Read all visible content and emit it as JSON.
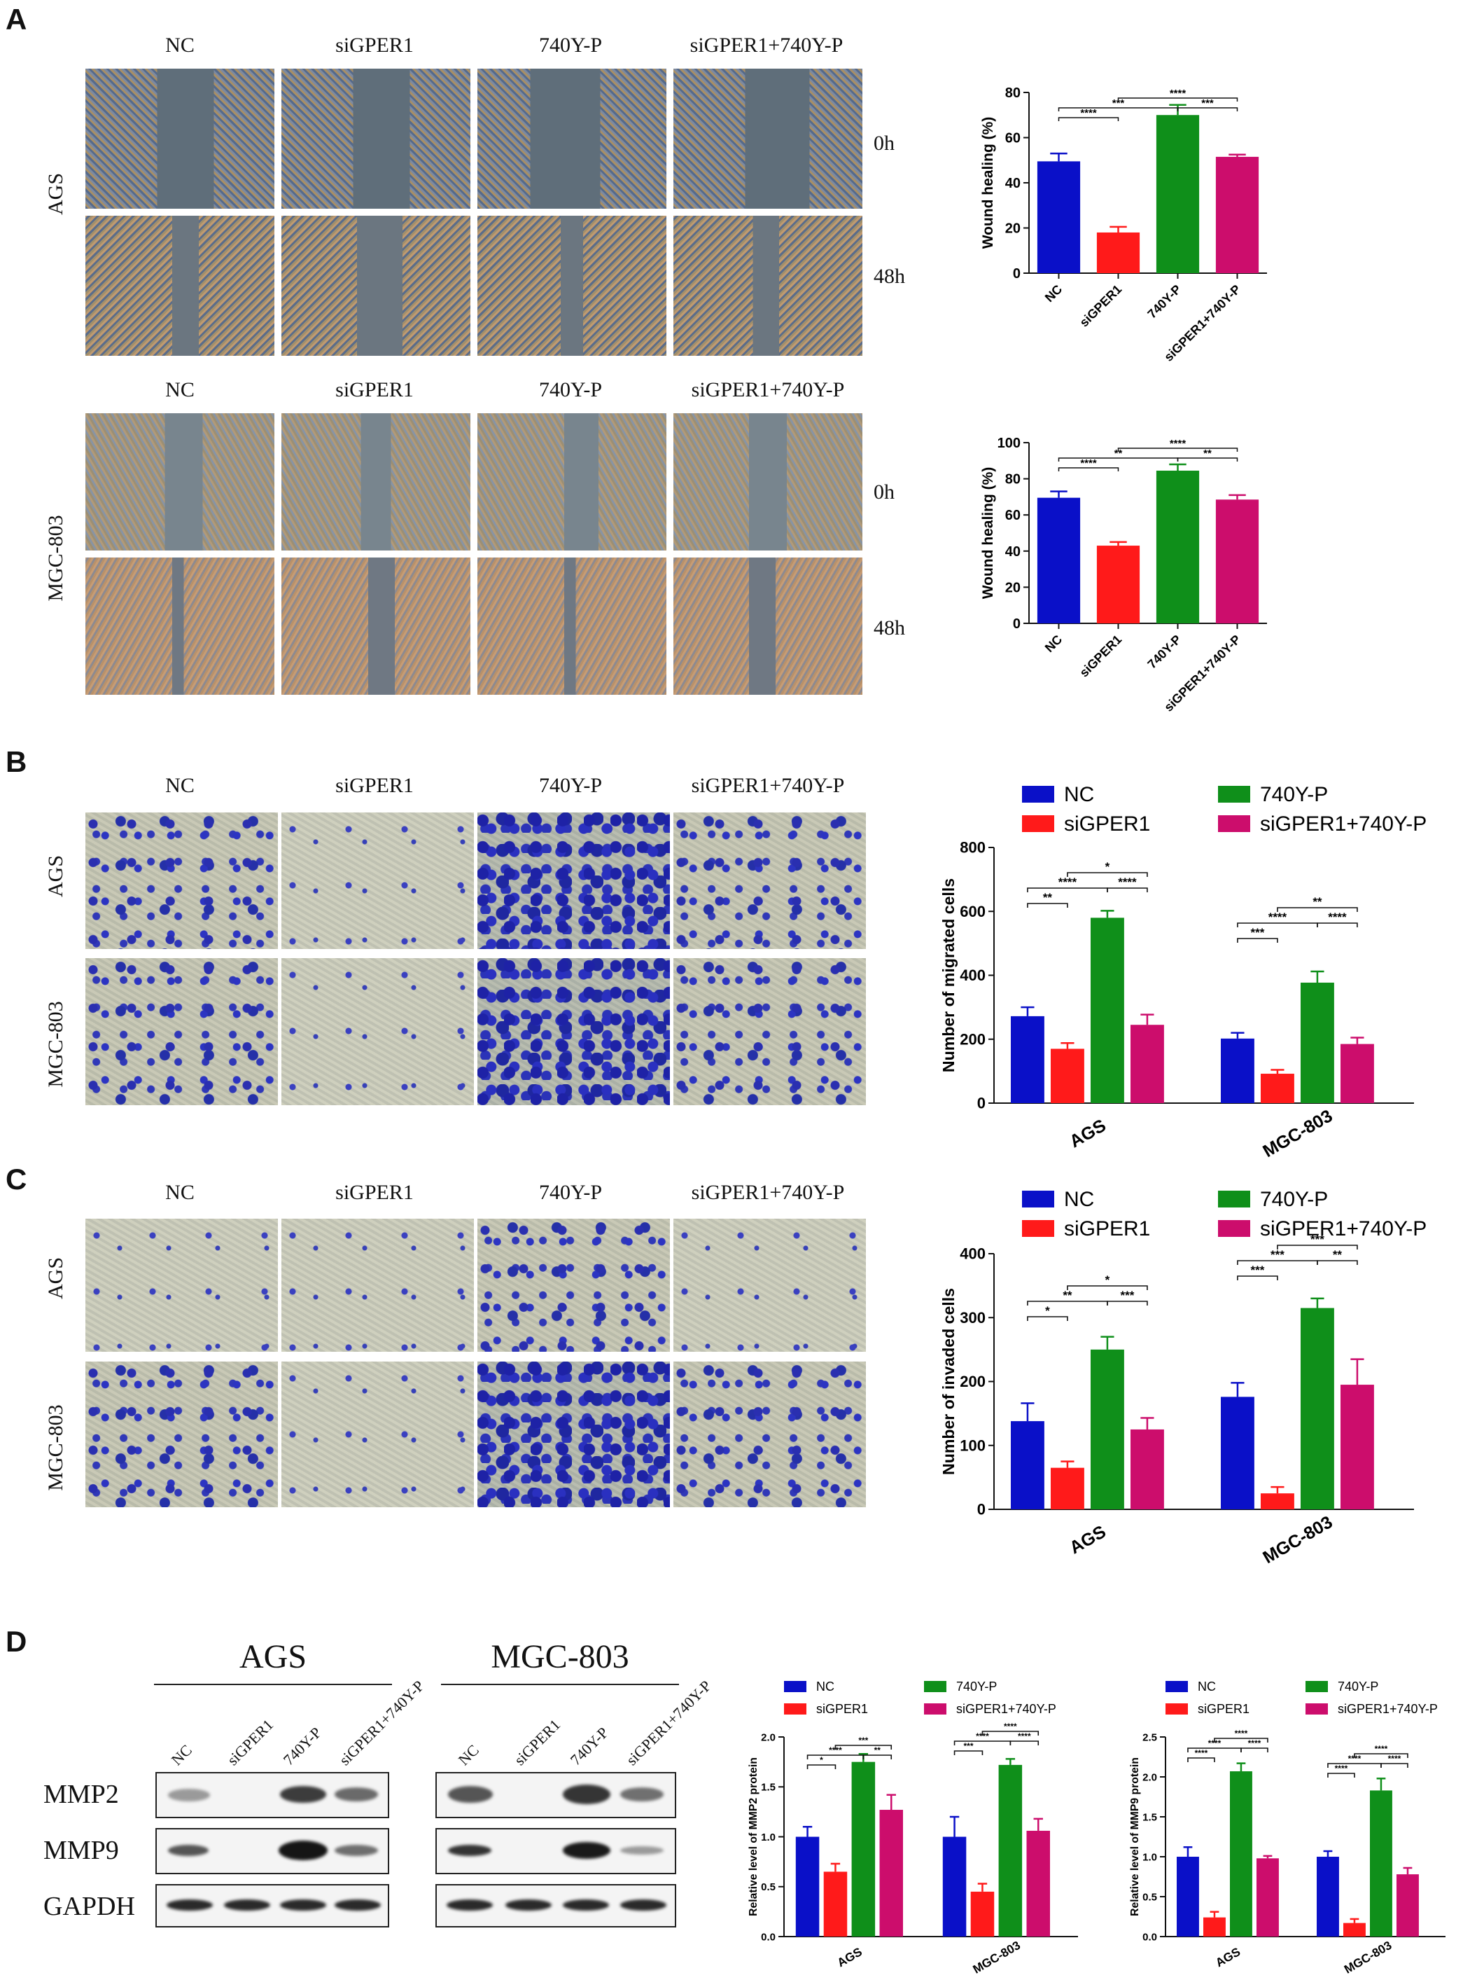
{
  "panels": {
    "A": "A",
    "B": "B",
    "C": "C",
    "D": "D"
  },
  "groups": [
    "NC",
    "siGPER1",
    "740Y-P",
    "siGPER1+740Y-P"
  ],
  "cells": [
    "AGS",
    "MGC-803"
  ],
  "times": [
    "0h",
    "48h"
  ],
  "colors": {
    "NC": "#0a10c8",
    "siGPER1": "#ff1a1a",
    "740Y-P": "#0f8f1a",
    "siGPER1+740Y-P": "#cc0d6c"
  },
  "blot": {
    "cell_titles": [
      "AGS",
      "MGC-803"
    ],
    "lanes": [
      "NC",
      "siGPER1",
      "740Y-P",
      "siGPER1+740Y-P"
    ],
    "proteins": [
      "MMP2",
      "MMP9",
      "GAPDH"
    ]
  },
  "chart_data": [
    {
      "id": "A-AGS",
      "type": "bar",
      "ylabel": "Wound healing (%)",
      "categories": [
        "NC",
        "siGPER1",
        "740Y-P",
        "siGPER1+740Y-P"
      ],
      "values": [
        49.5,
        18,
        70,
        51.5
      ],
      "errors": [
        3.5,
        2.5,
        4.5,
        1
      ],
      "ylim": [
        0,
        80
      ],
      "yticks": [
        0,
        20,
        40,
        60,
        80
      ],
      "sig": [
        {
          "a": 0,
          "b": 1,
          "label": "****",
          "level": 0
        },
        {
          "a": 0,
          "b": 2,
          "label": "***",
          "level": 1
        },
        {
          "a": 2,
          "b": 3,
          "label": "***",
          "level": 1
        },
        {
          "a": 1,
          "b": 3,
          "label": "****",
          "level": 2
        }
      ]
    },
    {
      "id": "A-MGC",
      "type": "bar",
      "ylabel": "Wound healing (%)",
      "categories": [
        "NC",
        "siGPER1",
        "740Y-P",
        "siGPER1+740Y-P"
      ],
      "values": [
        69.5,
        43,
        84.5,
        68.5
      ],
      "errors": [
        3.5,
        2,
        3.5,
        2.5
      ],
      "ylim": [
        0,
        100
      ],
      "yticks": [
        0,
        20,
        40,
        60,
        80,
        100
      ],
      "sig": [
        {
          "a": 0,
          "b": 1,
          "label": "****",
          "level": 0
        },
        {
          "a": 0,
          "b": 2,
          "label": "**",
          "level": 1
        },
        {
          "a": 2,
          "b": 3,
          "label": "**",
          "level": 1
        },
        {
          "a": 1,
          "b": 3,
          "label": "****",
          "level": 2
        }
      ]
    },
    {
      "id": "B",
      "type": "bar",
      "ylabel": "Number of migrated cells",
      "categories": [
        "AGS",
        "MGC-803"
      ],
      "series": [
        {
          "name": "NC",
          "values": [
            272,
            202
          ],
          "errors": [
            28,
            18
          ]
        },
        {
          "name": "siGPER1",
          "values": [
            170,
            92
          ],
          "errors": [
            18,
            12
          ]
        },
        {
          "name": "740Y-P",
          "values": [
            580,
            377
          ],
          "errors": [
            22,
            35
          ]
        },
        {
          "name": "siGPER1+740Y-P",
          "values": [
            245,
            185
          ],
          "errors": [
            32,
            20
          ]
        }
      ],
      "ylim": [
        0,
        800
      ],
      "yticks": [
        0,
        200,
        400,
        600,
        800
      ],
      "sig": [
        [
          {
            "a": 0,
            "b": 1,
            "label": "**",
            "level": 0
          },
          {
            "a": 0,
            "b": 2,
            "label": "****",
            "level": 1
          },
          {
            "a": 2,
            "b": 3,
            "label": "****",
            "level": 1
          },
          {
            "a": 1,
            "b": 3,
            "label": "*",
            "level": 2
          }
        ],
        [
          {
            "a": 0,
            "b": 1,
            "label": "***",
            "level": 0
          },
          {
            "a": 0,
            "b": 2,
            "label": "****",
            "level": 1
          },
          {
            "a": 2,
            "b": 3,
            "label": "****",
            "level": 1
          },
          {
            "a": 1,
            "b": 3,
            "label": "**",
            "level": 2
          }
        ]
      ]
    },
    {
      "id": "C",
      "type": "bar",
      "ylabel": "Number of invaded cells",
      "categories": [
        "AGS",
        "MGC-803"
      ],
      "series": [
        {
          "name": "NC",
          "values": [
            138,
            176
          ],
          "errors": [
            28,
            22
          ]
        },
        {
          "name": "siGPER1",
          "values": [
            65,
            25
          ],
          "errors": [
            10,
            10
          ]
        },
        {
          "name": "740Y-P",
          "values": [
            250,
            315
          ],
          "errors": [
            20,
            15
          ]
        },
        {
          "name": "siGPER1+740Y-P",
          "values": [
            125,
            195
          ],
          "errors": [
            18,
            40
          ]
        }
      ],
      "ylim": [
        0,
        400
      ],
      "yticks": [
        0,
        100,
        200,
        300,
        400
      ],
      "sig": [
        [
          {
            "a": 0,
            "b": 1,
            "label": "*",
            "level": 0
          },
          {
            "a": 0,
            "b": 2,
            "label": "**",
            "level": 1
          },
          {
            "a": 2,
            "b": 3,
            "label": "***",
            "level": 1
          },
          {
            "a": 1,
            "b": 3,
            "label": "*",
            "level": 2
          }
        ],
        [
          {
            "a": 0,
            "b": 1,
            "label": "***",
            "level": 0
          },
          {
            "a": 0,
            "b": 2,
            "label": "***",
            "level": 1
          },
          {
            "a": 2,
            "b": 3,
            "label": "**",
            "level": 1
          },
          {
            "a": 1,
            "b": 3,
            "label": "***",
            "level": 2
          }
        ]
      ]
    },
    {
      "id": "D-MMP2",
      "type": "bar",
      "ylabel": "Relative level of MMP2 protein",
      "categories": [
        "AGS",
        "MGC-803"
      ],
      "series": [
        {
          "name": "NC",
          "values": [
            1.0,
            1.0
          ],
          "errors": [
            0.1,
            0.2
          ]
        },
        {
          "name": "siGPER1",
          "values": [
            0.65,
            0.45
          ],
          "errors": [
            0.08,
            0.08
          ]
        },
        {
          "name": "740Y-P",
          "values": [
            1.75,
            1.72
          ],
          "errors": [
            0.08,
            0.06
          ]
        },
        {
          "name": "siGPER1+740Y-P",
          "values": [
            1.27,
            1.06
          ],
          "errors": [
            0.15,
            0.12
          ]
        }
      ],
      "ylim": [
        0,
        2.0
      ],
      "yticks": [
        0,
        0.5,
        1.0,
        1.5,
        2.0
      ],
      "sig": [
        [
          {
            "a": 0,
            "b": 1,
            "label": "*",
            "level": 0
          },
          {
            "a": 0,
            "b": 2,
            "label": "****",
            "level": 1
          },
          {
            "a": 2,
            "b": 3,
            "label": "**",
            "level": 1
          },
          {
            "a": 1,
            "b": 3,
            "label": "***",
            "level": 2
          }
        ],
        [
          {
            "a": 0,
            "b": 1,
            "label": "***",
            "level": 0
          },
          {
            "a": 0,
            "b": 2,
            "label": "****",
            "level": 1
          },
          {
            "a": 2,
            "b": 3,
            "label": "****",
            "level": 1
          },
          {
            "a": 1,
            "b": 3,
            "label": "****",
            "level": 2
          }
        ]
      ]
    },
    {
      "id": "D-MMP9",
      "type": "bar",
      "ylabel": "Relative level of MMP9 protein",
      "categories": [
        "AGS",
        "MGC-803"
      ],
      "series": [
        {
          "name": "NC",
          "values": [
            1.0,
            1.0
          ],
          "errors": [
            0.12,
            0.07
          ]
        },
        {
          "name": "siGPER1",
          "values": [
            0.24,
            0.17
          ],
          "errors": [
            0.07,
            0.05
          ]
        },
        {
          "name": "740Y-P",
          "values": [
            2.07,
            1.83
          ],
          "errors": [
            0.1,
            0.15
          ]
        },
        {
          "name": "siGPER1+740Y-P",
          "values": [
            0.98,
            0.78
          ],
          "errors": [
            0.03,
            0.08
          ]
        }
      ],
      "ylim": [
        0,
        2.5
      ],
      "yticks": [
        0,
        0.5,
        1.0,
        1.5,
        2.0,
        2.5
      ],
      "sig": [
        [
          {
            "a": 0,
            "b": 1,
            "label": "****",
            "level": 0
          },
          {
            "a": 0,
            "b": 2,
            "label": "****",
            "level": 1
          },
          {
            "a": 2,
            "b": 3,
            "label": "****",
            "level": 1
          },
          {
            "a": 1,
            "b": 3,
            "label": "****",
            "level": 2
          }
        ],
        [
          {
            "a": 0,
            "b": 1,
            "label": "****",
            "level": 0
          },
          {
            "a": 0,
            "b": 2,
            "label": "****",
            "level": 1
          },
          {
            "a": 2,
            "b": 3,
            "label": "****",
            "level": 1
          },
          {
            "a": 1,
            "b": 3,
            "label": "****",
            "level": 2
          }
        ]
      ]
    }
  ]
}
